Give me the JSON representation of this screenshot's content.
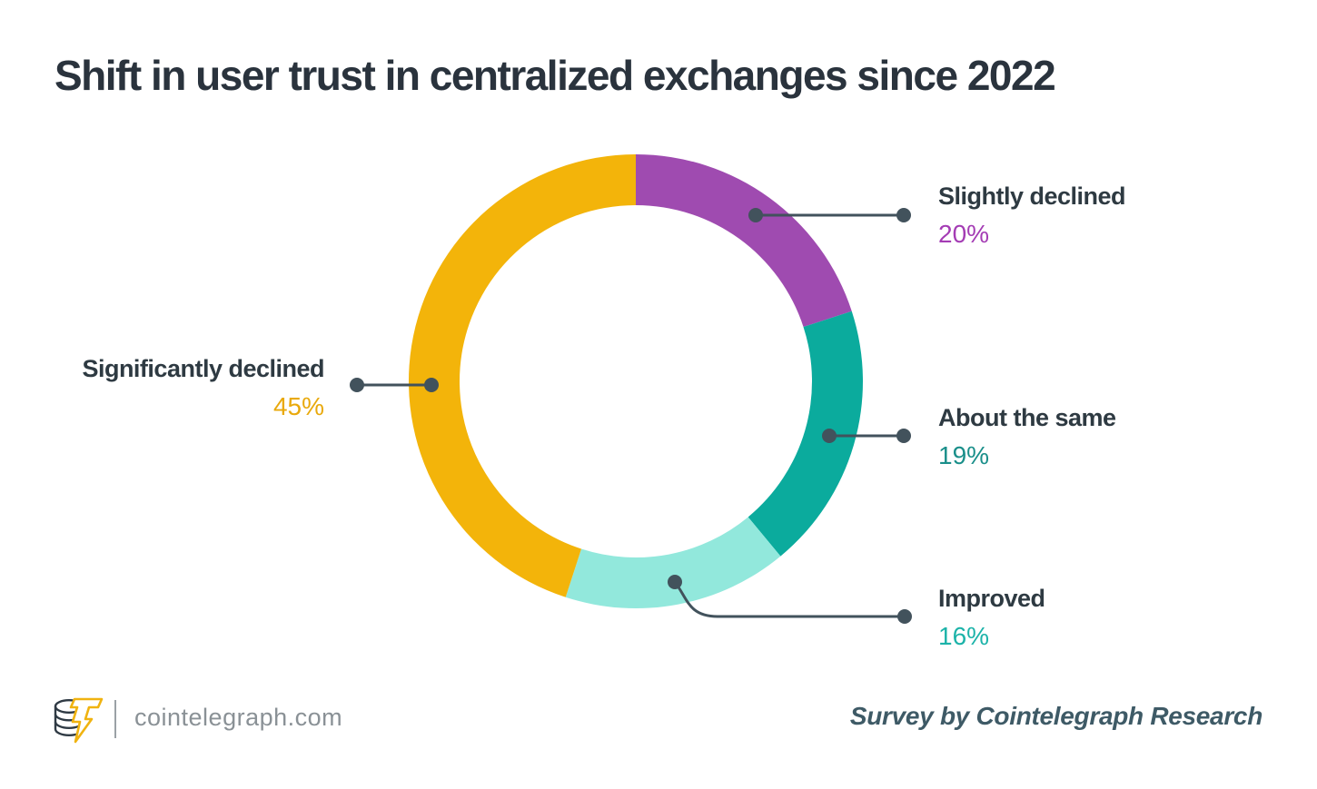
{
  "page": {
    "title": "Shift in user trust in centralized exchanges since 2022"
  },
  "chart_data": {
    "type": "pie",
    "variant": "donut",
    "title": "Shift in user trust in centralized exchanges since 2022",
    "start_angle_deg": 0,
    "direction": "clockwise",
    "legend_position": "callout-labels",
    "segments": [
      {
        "label": "Slightly declined",
        "value": 20,
        "display": "20%",
        "color": "#9F4BB0",
        "value_color": "#A43CB4"
      },
      {
        "label": "About the same",
        "value": 19,
        "display": "19%",
        "color": "#0BAB9D",
        "value_color": "#1A8F8A"
      },
      {
        "label": "Improved",
        "value": 16,
        "display": "16%",
        "color": "#92E8DC",
        "value_color": "#1CB3A9"
      },
      {
        "label": "Significantly declined",
        "value": 45,
        "display": "45%",
        "color": "#F3B40A",
        "value_color": "#E9A90B"
      }
    ]
  },
  "colors": {
    "title_text": "#2A333D",
    "label_text": "#2E3A42",
    "connector": "#42525C",
    "background": "#FFFFFF"
  },
  "footer": {
    "logo": "cointelegraph-logo",
    "site": "cointelegraph.com",
    "credit": "Survey by Cointelegraph Research"
  }
}
